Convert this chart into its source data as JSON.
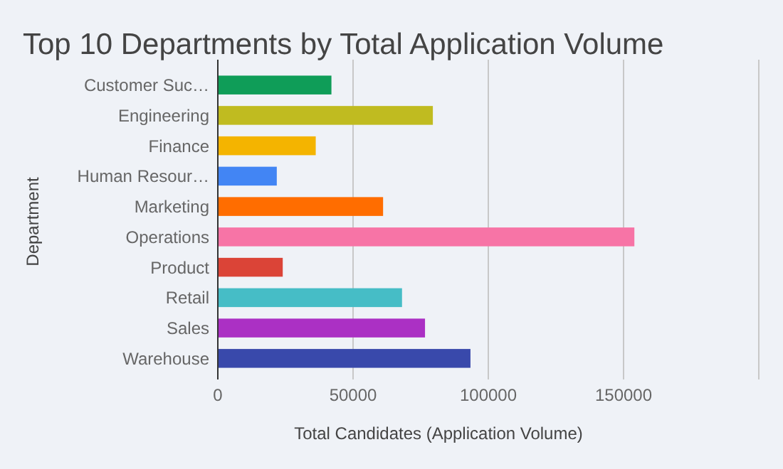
{
  "chart_data": {
    "type": "bar",
    "orientation": "horizontal",
    "title": "Top 10 Departments by Total Application Volume",
    "xlabel": "Total Candidates (Application Volume)",
    "ylabel": "Department",
    "categories": [
      "Customer Suc…",
      "Engineering",
      "Finance",
      "Human Resour…",
      "Marketing",
      "Operations",
      "Product",
      "Retail",
      "Sales",
      "Warehouse"
    ],
    "values": [
      42000,
      79500,
      36200,
      21800,
      61100,
      154000,
      24000,
      68100,
      76600,
      93400
    ],
    "colors": [
      "#0f9d58",
      "#c0bb20",
      "#f4b400",
      "#4285f4",
      "#ff6d00",
      "#f774a6",
      "#db4437",
      "#46bdc6",
      "#ab30c4",
      "#3949ab"
    ],
    "xlim": [
      0,
      200000
    ],
    "xticks": [
      0,
      50000,
      100000,
      150000,
      {
        "value": 200000,
        "label": null
      }
    ],
    "grid": "x"
  }
}
